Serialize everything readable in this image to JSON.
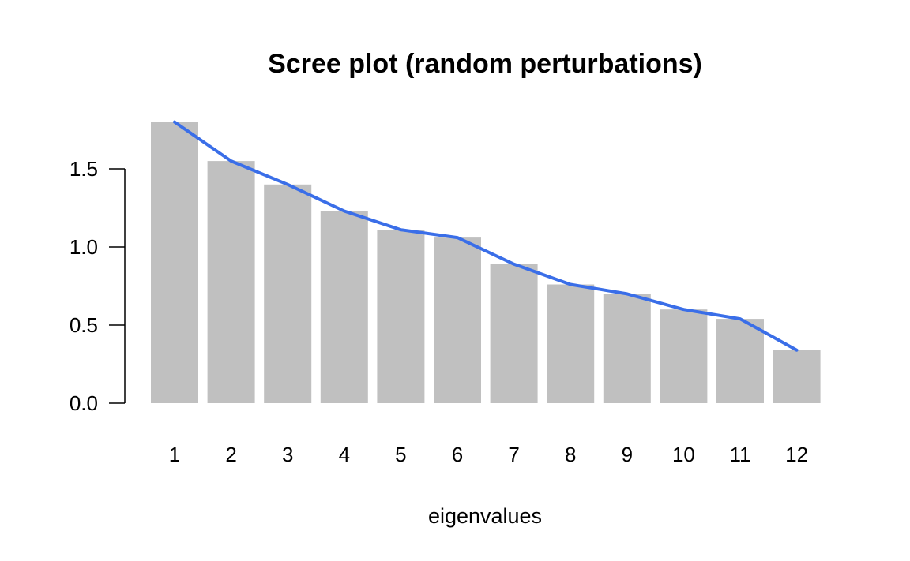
{
  "chart_data": {
    "type": "bar",
    "title": "Scree plot (random perturbations)",
    "xlabel": "eigenvalues",
    "ylabel": "",
    "categories": [
      "1",
      "2",
      "3",
      "4",
      "5",
      "6",
      "7",
      "8",
      "9",
      "10",
      "11",
      "12"
    ],
    "series": [
      {
        "kind": "bar",
        "values": [
          1.8,
          1.55,
          1.4,
          1.23,
          1.11,
          1.06,
          0.89,
          0.76,
          0.7,
          0.6,
          0.54,
          0.34
        ],
        "color": "#c0c0c0"
      },
      {
        "kind": "line",
        "values": [
          1.8,
          1.55,
          1.4,
          1.23,
          1.11,
          1.06,
          0.89,
          0.76,
          0.7,
          0.6,
          0.54,
          0.34
        ],
        "color": "#3a6ee8"
      }
    ],
    "y_ticks": [
      "0.0",
      "0.5",
      "1.0",
      "1.5"
    ],
    "y_tick_values": [
      0.0,
      0.5,
      1.0,
      1.5
    ],
    "ylim": [
      0,
      1.8
    ],
    "grid": false,
    "legend": "none",
    "axis_color": "#000000"
  }
}
